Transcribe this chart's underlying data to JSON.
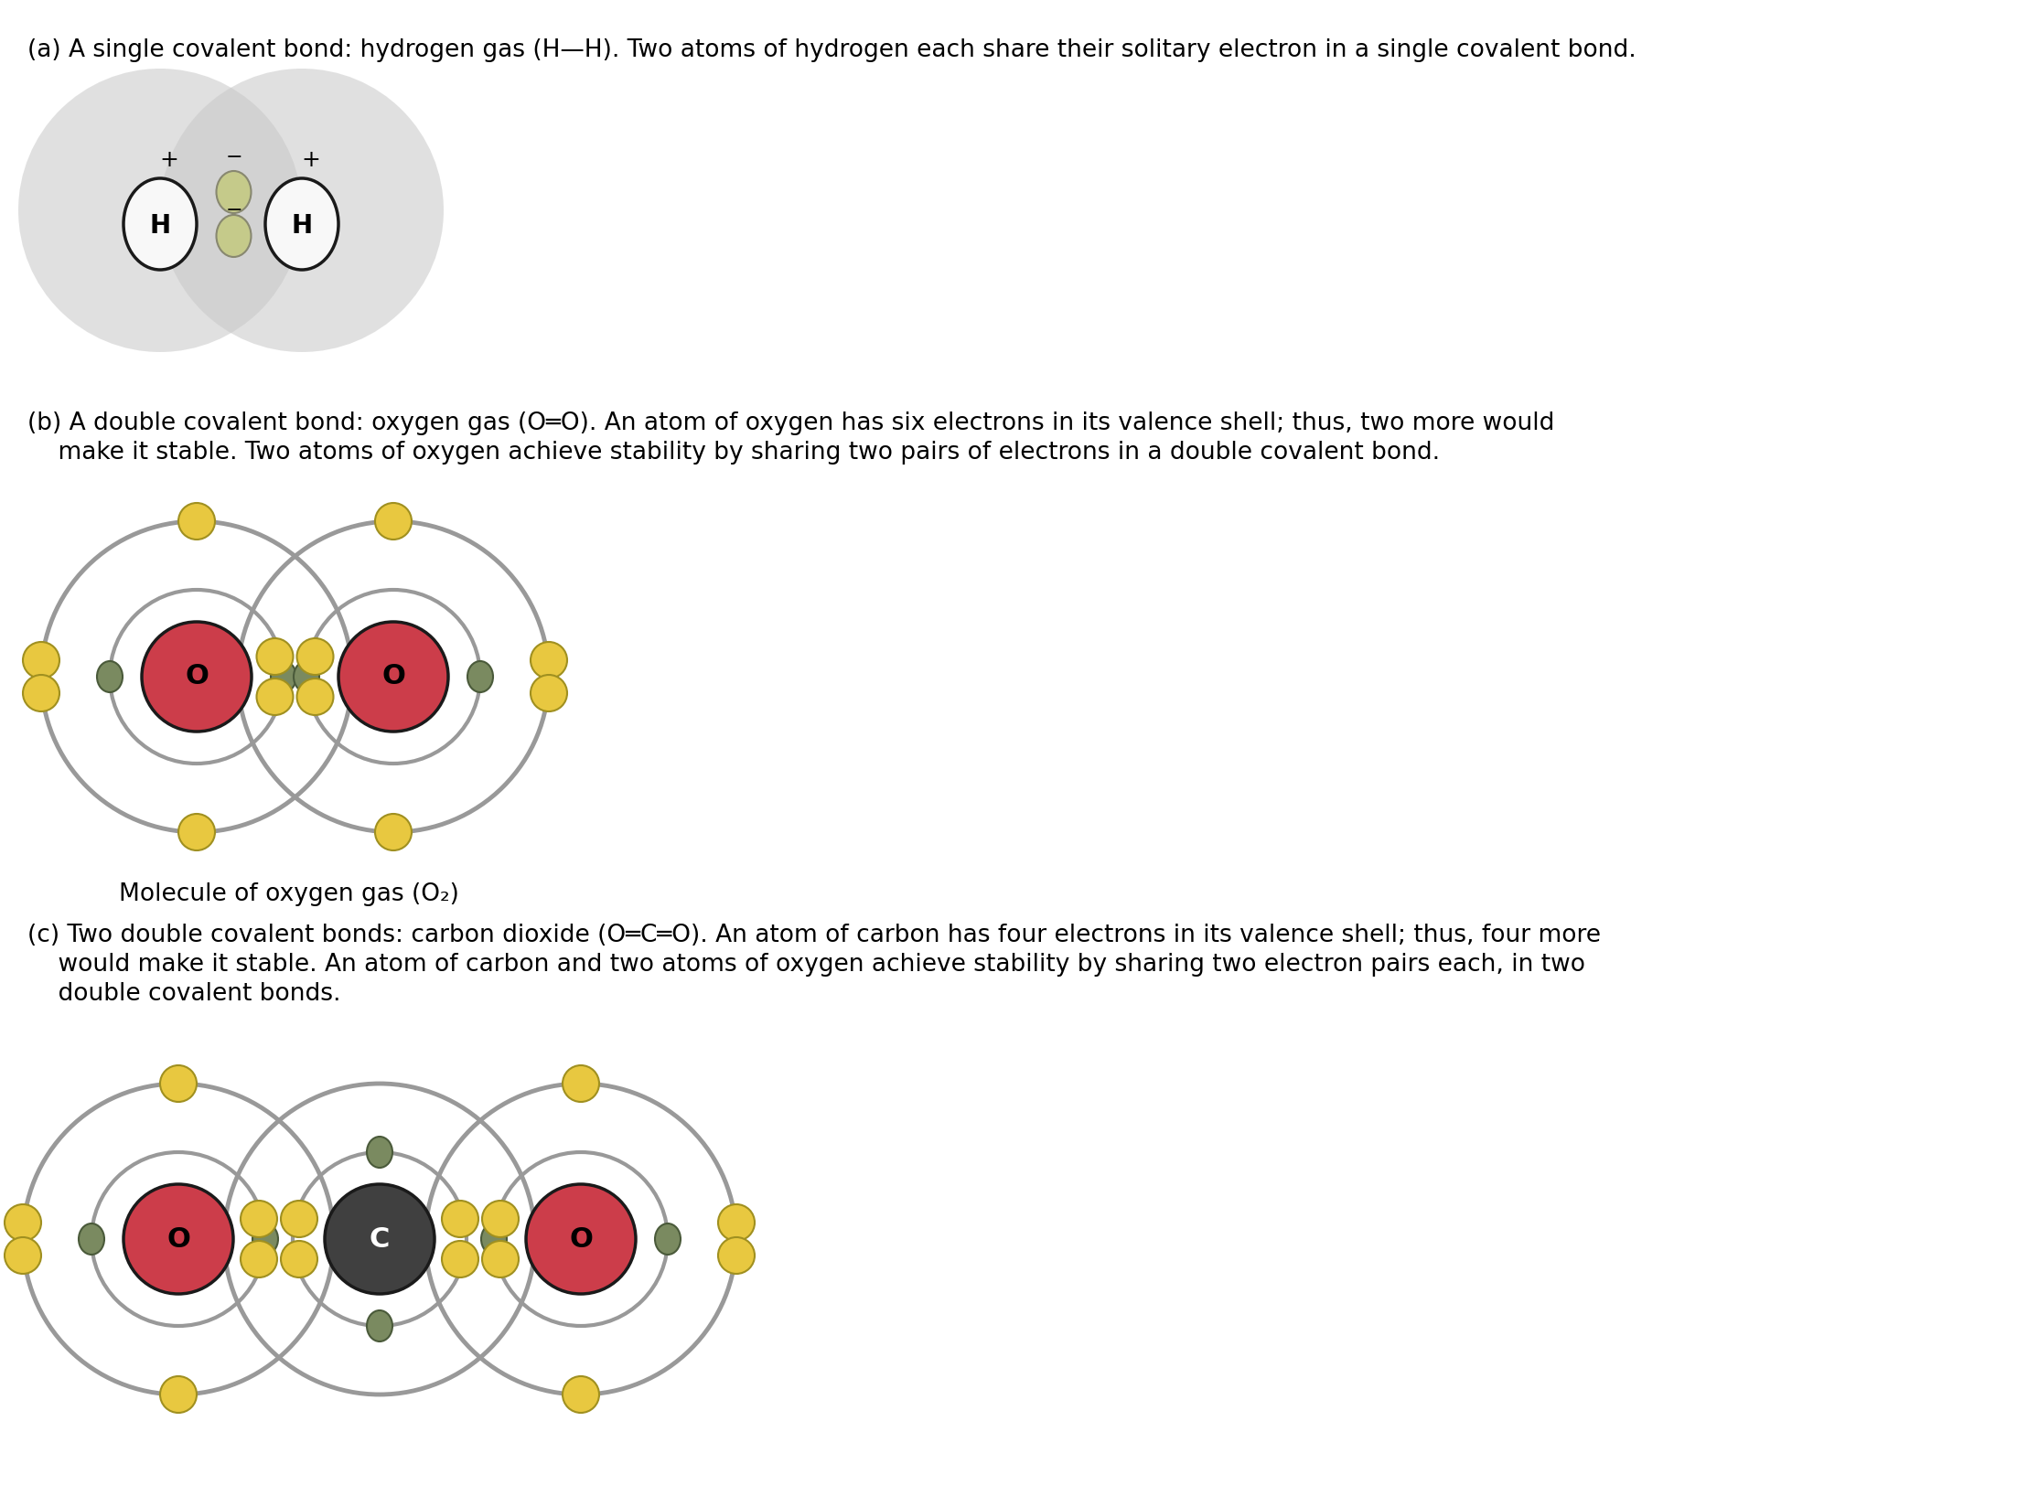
{
  "bg_color": "#ffffff",
  "text_color": "#000000",
  "section_a_text": "(a) A single covalent bond: hydrogen gas (H—H). Two atoms of hydrogen each share their solitary electron in a single covalent bond.",
  "section_b_line1": "(b) A double covalent bond: oxygen gas (O═O). An atom of oxygen has six electrons in its valence shell; thus, two more would",
  "section_b_line2": "    make it stable. Two atoms of oxygen achieve stability by sharing two pairs of electrons in a double covalent bond.",
  "section_c_line1": "(c) Two double covalent bonds: carbon dioxide (O═C═O). An atom of carbon has four electrons in its valence shell; thus, four more",
  "section_c_line2": "    would make it stable. An atom of carbon and two atoms of oxygen achieve stability by sharing two electron pairs each, in two",
  "section_c_line3": "    double covalent bonds.",
  "caption_b": "Molecule of oxygen gas (O₂)",
  "h_cloud_color": "#c8c8c8",
  "h_nucleus_fill": "#f8f8f8",
  "h_nucleus_edge": "#1a1a1a",
  "h_electron_fill": "#c5ca8a",
  "h_electron_edge": "#888870",
  "o_nucleus_fill": "#cc3d4a",
  "o_nucleus_edge": "#1a1a1a",
  "o_inner_fill": "#7a8a60",
  "o_inner_edge": "#4a5a3a",
  "o_outer_fill": "#e8c840",
  "o_outer_edge": "#a09020",
  "ring_color": "#999999",
  "c_nucleus_fill": "#404040",
  "c_nucleus_edge": "#1a1a1a",
  "c_text_color": "#ffffff",
  "font_size_text": 19,
  "font_size_label": 20
}
